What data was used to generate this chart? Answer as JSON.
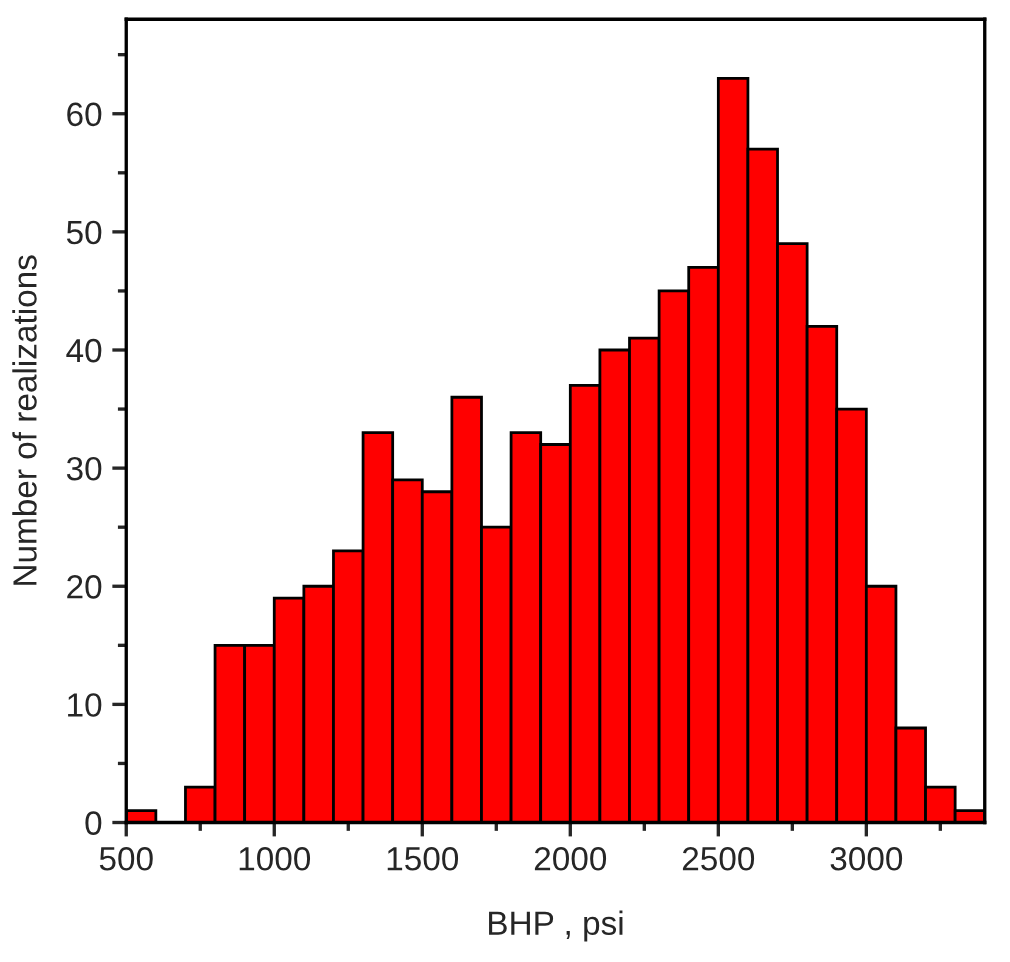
{
  "chart_data": {
    "type": "histogram",
    "xlabel": "BHP , psi",
    "ylabel": "Number of realizations",
    "color": "#ff0000",
    "bins": [
      500,
      600,
      700,
      800,
      900,
      1000,
      1100,
      1200,
      1300,
      1400,
      1500,
      1600,
      1700,
      1800,
      1900,
      2000,
      2100,
      2200,
      2300,
      2400,
      2500,
      2600,
      2700,
      2800,
      2900,
      3000,
      3100,
      3200,
      3300,
      3400
    ],
    "values": [
      1,
      0,
      3,
      15,
      15,
      19,
      20,
      23,
      33,
      29,
      28,
      36,
      25,
      33,
      32,
      37,
      40,
      41,
      45,
      47,
      63,
      57,
      49,
      42,
      35,
      20,
      8,
      3,
      1
    ],
    "xlim": [
      500,
      3400
    ],
    "ylim": [
      0,
      68
    ],
    "xticks": [
      500,
      {
        "value": 750,
        "label": null
      },
      1000,
      {
        "value": 1250,
        "label": null
      },
      1500,
      {
        "value": 1750,
        "label": null
      },
      2000,
      {
        "value": 2250,
        "label": null
      },
      2500,
      {
        "value": 2750,
        "label": null
      },
      3000,
      {
        "value": 3250,
        "label": null
      }
    ],
    "yticks": [
      0,
      {
        "value": 5,
        "label": null
      },
      10,
      {
        "value": 15,
        "label": null
      },
      20,
      {
        "value": 25,
        "label": null
      },
      30,
      {
        "value": 35,
        "label": null
      },
      40,
      {
        "value": 45,
        "label": null
      },
      50,
      {
        "value": 55,
        "label": null
      },
      60,
      {
        "value": 65,
        "label": null
      }
    ],
    "grid": false
  }
}
